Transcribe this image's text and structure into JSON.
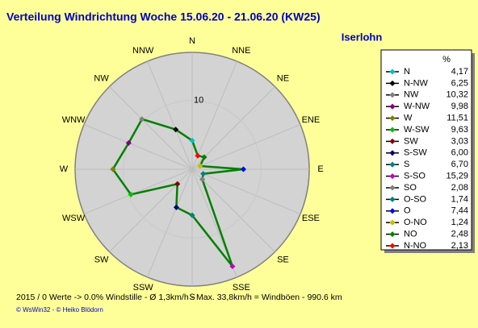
{
  "chart_data": {
    "type": "radar",
    "title": "Verteilung Windrichtung   Woche 15.06.20 - 21.06.20 (KW25)",
    "subtitle": "Iserlohn",
    "categories": [
      "N",
      "NNW",
      "NW",
      "WNW",
      "W",
      "WSW",
      "SW",
      "SSW",
      "S",
      "SSE",
      "SE",
      "ESE",
      "E",
      "ENE",
      "NE",
      "NNE"
    ],
    "values": [
      4.17,
      6.25,
      10.32,
      9.98,
      11.51,
      9.63,
      3.03,
      6.0,
      6.7,
      15.29,
      2.08,
      1.74,
      7.44,
      1.24,
      2.48,
      2.13
    ],
    "color": "#008000",
    "rlim": [
      0,
      17
    ],
    "rticks": [
      10
    ],
    "legend": {
      "title": "%",
      "names": [
        "N",
        "N-NW",
        "NW",
        "W-NW",
        "W",
        "W-SW",
        "SW",
        "S-SW",
        "S",
        "S-SO",
        "SO",
        "O-SO",
        "O",
        "O-NO",
        "NO",
        "N-NO"
      ],
      "value_labels": [
        "4,17",
        "6,25",
        "10,32",
        "9,98",
        "11,51",
        "9,63",
        "3,03",
        "6,00",
        "6,70",
        "15,29",
        "2,08",
        "1,74",
        "7,44",
        "1,24",
        "2,48",
        "2,13"
      ],
      "colors": [
        "#00c0c0",
        "#000000",
        "#808080",
        "#800080",
        "#808000",
        "#00c000",
        "#800000",
        "#000080",
        "#008080",
        "#c000c0",
        "#808080",
        "#008080",
        "#0000ff",
        "#c0c000",
        "#008000",
        "#ff0000"
      ]
    },
    "footer": "2015 / 0 Werte  -> 0.0% Windstille   -   Ø 1,3km/h   -   Max. 33,8km/h = Windböen   -   990.6 km",
    "credits": "© WsWin32  -  © Heiko Blödorn"
  }
}
